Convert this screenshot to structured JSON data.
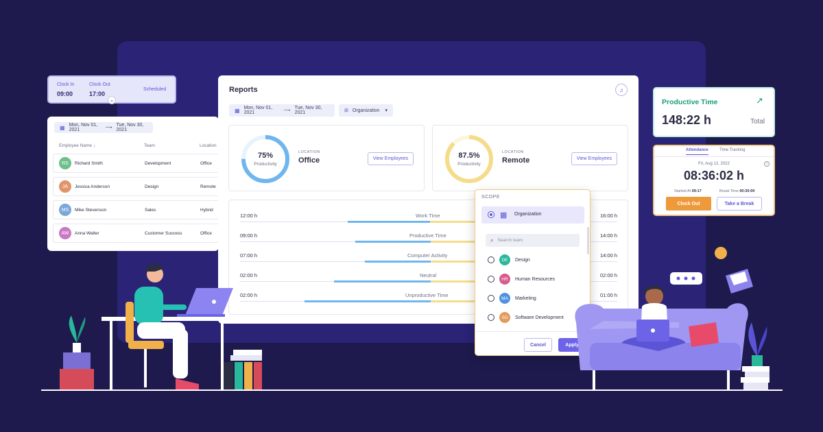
{
  "clock": {
    "in_label": "Clock In",
    "in_value": "09:00",
    "out_label": "Clock Out",
    "out_value": "17:00",
    "status": "Scheduled"
  },
  "employees": {
    "date_range": {
      "start": "Mon, Nov 01, 2021",
      "end": "Tue, Nov 30, 2021"
    },
    "columns": [
      "Employee Name",
      "Team",
      "Location"
    ],
    "rows": [
      {
        "initials": "RS",
        "name": "Richard Smith",
        "team": "Development",
        "location": "Office",
        "color": "#6fbf8a"
      },
      {
        "initials": "JA",
        "name": "Jessica Anderson",
        "team": "Design",
        "location": "Remote",
        "color": "#e0946b"
      },
      {
        "initials": "MS",
        "name": "Mike Stevenson",
        "team": "Sales",
        "location": "Hybrid",
        "color": "#7aa8d8"
      },
      {
        "initials": "AW",
        "name": "Anna Walter",
        "team": "Customer Success",
        "location": "Office",
        "color": "#c978c4"
      }
    ]
  },
  "reports": {
    "title": "Reports",
    "date_range": {
      "start": "Mon, Nov 01, 2021",
      "end": "Tue, Nov 30, 2021"
    },
    "scope_filter": "Organization",
    "stats": [
      {
        "percent": "75%",
        "percent_value": 75,
        "caption": "Productivity",
        "location_label": "LOCATION",
        "location": "Office",
        "button": "View Employees",
        "color": "#6fb6ef"
      },
      {
        "percent": "87.5%",
        "percent_value": 87.5,
        "caption": "Productivity",
        "location_label": "LOCATION",
        "location": "Remote",
        "button": "View Employees",
        "color": "#f5dc8a"
      }
    ],
    "timeline": [
      {
        "left": "12:00 h",
        "label": "Work Time",
        "right": "16:00 h"
      },
      {
        "left": "09:00 h",
        "label": "Productive Time",
        "right": "14:00 h"
      },
      {
        "left": "07:00 h",
        "label": "Computer Activity",
        "right": "14:00 h"
      },
      {
        "left": "02:00 h",
        "label": "Neutral",
        "right": "02:00 h"
      },
      {
        "left": "02:00 h",
        "label": "Unproductive Time",
        "right": "01:00 h"
      }
    ]
  },
  "scope": {
    "title": "SCOPE",
    "selected": "Organization",
    "search_placeholder": "Search team",
    "teams": [
      {
        "initials": "DE",
        "name": "Design",
        "color": "#29b89a"
      },
      {
        "initials": "HR",
        "name": "Human Resources",
        "color": "#d75a8f"
      },
      {
        "initials": "MA",
        "name": "Marketing",
        "color": "#4f93e0"
      },
      {
        "initials": "SD",
        "name": "Software Development",
        "color": "#e39a5a"
      }
    ],
    "cancel": "Cancel",
    "apply": "Apply"
  },
  "productive": {
    "title": "Productive Time",
    "value": "148:22 h",
    "suffix": "Total",
    "accent": "#1a9e7a"
  },
  "attendance": {
    "tabs": [
      "Attendance",
      "Time Tracking"
    ],
    "date": "Fri, Aug 12, 2022",
    "timer": "08:36:02 h",
    "started_label": "Started At",
    "started_value": "09:17",
    "break_label": "Break Time",
    "break_value": "00:30:00",
    "clock_out": "Clock Out",
    "take_break": "Take a Break"
  },
  "colors": {
    "background": "#1e1a4d",
    "panel": "#2a2376",
    "accent": "#5b55d6",
    "orange": "#ee9a3a"
  }
}
